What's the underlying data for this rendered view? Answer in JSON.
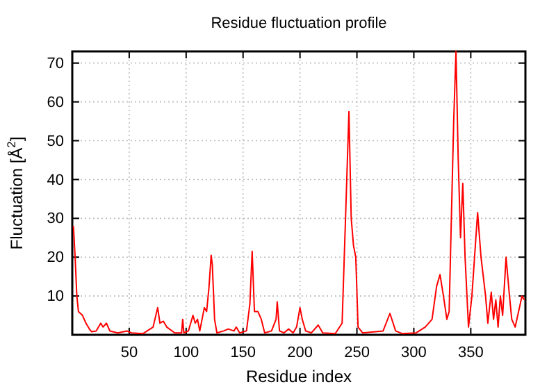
{
  "chart_data": {
    "type": "line",
    "title": "Residue fluctuation profile",
    "xlabel": "Residue index",
    "ylabel": "Fluctuation [Å$^{2}$]",
    "xlim": [
      0,
      398
    ],
    "ylim": [
      0,
      73
    ],
    "xticks": [
      50,
      100,
      150,
      200,
      250,
      300,
      350
    ],
    "yticks": [
      10,
      20,
      30,
      40,
      50,
      60,
      70
    ],
    "grid": true,
    "line_style": "solid",
    "marker": "none",
    "x": [
      1,
      2.5,
      4,
      5.4,
      9,
      12,
      15,
      17,
      21,
      25,
      27,
      30,
      33,
      40,
      48,
      52,
      62,
      71,
      75,
      77,
      80,
      83,
      90,
      96,
      97,
      98,
      102,
      106,
      108,
      110,
      112,
      116,
      118,
      120,
      122,
      123,
      125,
      127,
      133,
      137,
      142,
      144,
      147,
      153,
      156,
      158,
      160,
      163,
      166,
      169,
      175,
      179,
      180,
      182,
      186,
      190,
      194,
      197,
      200,
      202,
      205,
      210,
      216,
      220,
      231,
      237,
      240,
      243,
      245,
      247,
      249,
      251,
      255,
      273,
      279,
      284,
      290,
      302,
      310,
      316,
      320,
      323,
      326,
      329,
      331,
      335,
      337,
      339,
      341,
      343,
      345,
      348,
      351,
      356,
      359,
      363,
      365,
      368,
      370,
      372,
      374,
      376,
      378,
      381,
      384,
      386,
      389,
      392,
      395,
      397
    ],
    "series": [
      {
        "color": "#ff0000",
        "values": [
          28,
          20,
          10,
          6,
          5,
          3,
          1.5,
          0.8,
          1,
          3,
          2,
          3,
          1,
          0.5,
          1,
          0.5,
          0.3,
          2,
          7,
          3,
          3.5,
          2,
          0.5,
          0.5,
          4,
          0.5,
          1,
          5,
          3,
          4,
          1,
          7,
          6,
          12,
          20.5,
          18,
          4,
          0.5,
          1,
          1.5,
          1,
          2,
          0.5,
          1,
          8,
          21.5,
          6,
          6,
          4,
          0.5,
          1,
          4,
          8.5,
          1,
          0.5,
          1.5,
          0.5,
          2,
          7,
          4,
          1,
          0.5,
          2.5,
          0.5,
          0.3,
          3,
          30,
          57.5,
          30,
          23,
          20,
          2,
          0.5,
          1,
          5.5,
          1,
          0.3,
          0.5,
          2,
          4,
          12.5,
          15.5,
          10,
          4,
          6,
          55,
          73,
          45,
          25,
          39,
          20,
          2,
          10,
          31.5,
          20,
          10,
          3,
          11,
          4,
          9,
          2,
          10,
          5,
          20,
          10,
          4,
          2,
          6,
          10,
          9
        ]
      }
    ]
  }
}
